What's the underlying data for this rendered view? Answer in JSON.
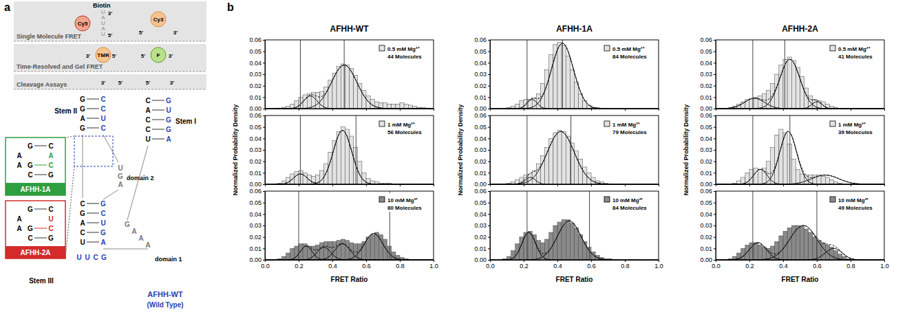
{
  "diagram": {
    "label": "a",
    "sections": [
      {
        "title": "Single Molecule FRET",
        "tag": "Biotin",
        "dyes": [
          "Cy5",
          "Cy3"
        ],
        "strand": [
          "U",
          "A",
          "U",
          "A",
          "U"
        ],
        "ends": [
          "3'",
          "5'",
          "5'",
          "3'"
        ]
      },
      {
        "title": "Time-Resolved and Gel FRET",
        "dyes": [
          "TMR",
          "F"
        ],
        "ends": [
          "3'",
          "5'",
          "5'",
          "3'"
        ]
      },
      {
        "title": "Cleavage Assays",
        "ends": [
          "3'",
          "5'",
          "5'",
          "3'"
        ]
      }
    ],
    "stems": [
      {
        "label": "Stem II",
        "pairs": [
          [
            "G",
            "C"
          ],
          [
            "G",
            "C"
          ],
          [
            "A",
            "U"
          ],
          [
            "G",
            "C"
          ]
        ]
      },
      {
        "label": "Stem I",
        "pairs": [
          [
            "C",
            "G"
          ],
          [
            "A",
            "U"
          ],
          [
            "C",
            "G"
          ],
          [
            "C",
            "G"
          ],
          [
            "U",
            "A"
          ]
        ]
      },
      {
        "label": "Stem III",
        "pairs": [
          [
            "C",
            "G"
          ],
          [
            "G",
            "C"
          ],
          [
            "A",
            "U"
          ],
          [
            "C",
            "G"
          ],
          [
            "U",
            "A"
          ]
        ],
        "loop": [
          "U",
          "U",
          "C",
          "G"
        ]
      }
    ],
    "domains": [
      {
        "label": "domain 1",
        "bases": [
          "G",
          "A",
          "A",
          "A"
        ]
      },
      {
        "label": "domain 2",
        "bases": [
          "U",
          "G",
          "A"
        ]
      }
    ],
    "insets": [
      {
        "label": "AFHH-1A",
        "color": "#2e9e3e",
        "rows": [
          [
            null,
            "G",
            "C"
          ],
          [
            "A",
            null,
            "A"
          ],
          [
            "A",
            "G",
            "C"
          ],
          [
            null,
            "C",
            "G"
          ]
        ]
      },
      {
        "label": "AFHH-2A",
        "color": "#d42a2a",
        "rows": [
          [
            null,
            "G",
            "C"
          ],
          [
            "A",
            null,
            "U"
          ],
          [
            "A",
            "G",
            "C"
          ],
          [
            null,
            "C",
            "G"
          ]
        ]
      }
    ],
    "wild_type": {
      "label": "AFHH-WT",
      "note": "(Wild Type)",
      "color": "#2b3fb0"
    }
  },
  "panel_b": {
    "label": "b"
  },
  "chart_data": [
    {
      "type": "histogram",
      "title": "AFHH-WT",
      "xlabel": "FRET Ratio",
      "ylabel": "Normalized Probability Density",
      "xlim": [
        0,
        1
      ],
      "ylim": [
        0,
        0.06
      ],
      "xticks": [
        {
          "value": 0,
          "label": "0.0"
        },
        0.2,
        0.4,
        0.6,
        0.8,
        {
          "value": 1,
          "label": "1.0"
        }
      ],
      "yticks": [
        {
          "value": 0,
          "label": "0.00"
        },
        0.01,
        0.02,
        0.03,
        0.04,
        0.05,
        0.06
      ],
      "legend": "upper right",
      "bins": [
        0,
        0.025,
        0.05,
        0.075,
        0.1,
        0.125,
        0.15,
        0.175,
        0.2,
        0.225,
        0.25,
        0.275,
        0.3,
        0.325,
        0.35,
        0.375,
        0.4,
        0.425,
        0.45,
        0.475,
        0.5,
        0.525,
        0.55,
        0.575,
        0.6,
        0.625,
        0.65,
        0.675,
        0.7,
        0.725,
        0.75,
        0.775,
        0.8,
        0.825,
        0.85,
        0.875,
        0.9,
        0.925,
        0.95,
        0.975,
        1
      ],
      "panels": [
        {
          "legend_text": "0.5 mM Mg²⁺",
          "count_text": "44 Molecules",
          "color": "#e3e3e3",
          "tick_labels": "y",
          "counts": [
            0,
            0,
            0,
            0.0005,
            0.001,
            0.002,
            0.004,
            0.007,
            0.01,
            0.012,
            0.013,
            0.014,
            0.014,
            0.015,
            0.019,
            0.025,
            0.031,
            0.037,
            0.039,
            0.038,
            0.035,
            0.029,
            0.022,
            0.016,
            0.011,
            0.008,
            0.006,
            0.005,
            0.005,
            0.004,
            0.004,
            0.004,
            0.005,
            0.004,
            0.003,
            0.002,
            0.001,
            0.001,
            0.0005,
            0
          ],
          "fits": [
            {
              "center": 0.27,
              "amplitude": 0.011,
              "sigma": 0.04
            },
            {
              "center": 0.47,
              "amplitude": 0.038,
              "sigma": 0.075
            }
          ],
          "vlines": [
            0.21,
            0.47
          ]
        },
        {
          "legend_text": "1 mM Mg²⁺",
          "count_text": "56 Molecules",
          "color": "#e3e3e3",
          "tick_labels": "y",
          "counts": [
            0,
            0,
            0,
            0.001,
            0.003,
            0.006,
            0.009,
            0.011,
            0.012,
            0.01,
            0.008,
            0.007,
            0.008,
            0.012,
            0.018,
            0.028,
            0.038,
            0.046,
            0.05,
            0.048,
            0.042,
            0.032,
            0.02,
            0.01,
            0.005,
            0.003,
            0.002,
            0.001,
            0.001,
            0.001,
            0,
            0,
            0,
            0,
            0,
            0,
            0,
            0,
            0,
            0
          ],
          "fits": [
            {
              "center": 0.21,
              "amplitude": 0.009,
              "sigma": 0.04
            },
            {
              "center": 0.46,
              "amplitude": 0.047,
              "sigma": 0.055
            }
          ],
          "vlines": [
            0.21,
            0.54
          ]
        },
        {
          "legend_text": "10 mM Mg²⁺",
          "count_text": "80 Molecules",
          "color": "#8a8a8a",
          "tick_labels": true,
          "counts": [
            0,
            0,
            0,
            0.001,
            0.003,
            0.006,
            0.01,
            0.012,
            0.014,
            0.014,
            0.012,
            0.012,
            0.013,
            0.015,
            0.016,
            0.016,
            0.016,
            0.017,
            0.018,
            0.017,
            0.015,
            0.014,
            0.014,
            0.016,
            0.02,
            0.022,
            0.024,
            0.022,
            0.018,
            0.012,
            0.007,
            0.004,
            0.002,
            0.001,
            0,
            0,
            0,
            0,
            0,
            0
          ],
          "fits": [
            {
              "center": 0.245,
              "amplitude": 0.012,
              "sigma": 0.035
            },
            {
              "center": 0.35,
              "amplitude": 0.011,
              "sigma": 0.04
            },
            {
              "center": 0.46,
              "amplitude": 0.014,
              "sigma": 0.045
            },
            {
              "center": 0.645,
              "amplitude": 0.023,
              "sigma": 0.055
            }
          ],
          "vlines": [
            0.2,
            0.74
          ]
        }
      ]
    },
    {
      "type": "histogram",
      "title": "AFHH-1A",
      "xlabel": "FRET Ratio",
      "ylabel": "Normalized Probability Density",
      "xlim": [
        0,
        1
      ],
      "ylim": [
        0,
        0.06
      ],
      "xticks": [
        {
          "value": 0,
          "label": "0.0"
        },
        0.2,
        0.4,
        0.6,
        0.8,
        {
          "value": 1,
          "label": "1.0"
        }
      ],
      "yticks": [
        {
          "value": 0,
          "label": "0.00"
        },
        0.01,
        0.02,
        0.03,
        0.04,
        0.05,
        0.06
      ],
      "legend": "upper right",
      "bins": [
        0,
        0.025,
        0.05,
        0.075,
        0.1,
        0.125,
        0.15,
        0.175,
        0.2,
        0.225,
        0.25,
        0.275,
        0.3,
        0.325,
        0.35,
        0.375,
        0.4,
        0.425,
        0.45,
        0.475,
        0.5,
        0.525,
        0.55,
        0.575,
        0.6,
        0.625,
        0.65,
        0.675,
        0.7,
        0.725,
        0.75,
        0.775,
        0.8,
        0.825,
        0.85,
        0.875,
        0.9,
        0.925,
        0.95,
        0.975,
        1
      ],
      "panels": [
        {
          "legend_text": "0.5 mM Mg²⁺",
          "count_text": "84 Molecules",
          "color": "#e3e3e3",
          "tick_labels": "y",
          "counts": [
            0,
            0,
            0,
            0,
            0.001,
            0.002,
            0.004,
            0.007,
            0.008,
            0.008,
            0.009,
            0.013,
            0.022,
            0.034,
            0.047,
            0.056,
            0.058,
            0.055,
            0.046,
            0.034,
            0.023,
            0.013,
            0.007,
            0.003,
            0.001,
            0.001,
            0,
            0,
            0,
            0,
            0,
            0,
            0,
            0,
            0,
            0,
            0,
            0,
            0,
            0
          ],
          "fits": [
            {
              "center": 0.25,
              "amplitude": 0.008,
              "sigma": 0.03
            },
            {
              "center": 0.43,
              "amplitude": 0.057,
              "sigma": 0.065
            }
          ],
          "vlines": [
            0.22,
            0.43
          ]
        },
        {
          "legend_text": "1 mM Mg²⁺",
          "count_text": "79 Molecules",
          "color": "#e3e3e3",
          "tick_labels": "y",
          "counts": [
            0,
            0,
            0,
            0,
            0.001,
            0.002,
            0.004,
            0.006,
            0.008,
            0.009,
            0.012,
            0.018,
            0.025,
            0.032,
            0.04,
            0.045,
            0.047,
            0.046,
            0.042,
            0.036,
            0.029,
            0.022,
            0.015,
            0.01,
            0.006,
            0.003,
            0.002,
            0.001,
            0,
            0,
            0,
            0,
            0,
            0,
            0,
            0,
            0,
            0,
            0,
            0
          ],
          "fits": [
            {
              "center": 0.24,
              "amplitude": 0.006,
              "sigma": 0.03
            },
            {
              "center": 0.42,
              "amplitude": 0.046,
              "sigma": 0.08
            }
          ],
          "vlines": [
            0.22,
            0.48
          ]
        },
        {
          "legend_text": "10 mM Mg²⁺",
          "count_text": "84 Molecules",
          "color": "#8a8a8a",
          "tick_labels": true,
          "counts": [
            0,
            0,
            0,
            0.001,
            0.003,
            0.008,
            0.014,
            0.02,
            0.024,
            0.025,
            0.022,
            0.017,
            0.015,
            0.018,
            0.024,
            0.03,
            0.033,
            0.035,
            0.035,
            0.032,
            0.028,
            0.022,
            0.016,
            0.011,
            0.007,
            0.004,
            0.002,
            0.001,
            0.001,
            0,
            0,
            0,
            0,
            0,
            0,
            0,
            0,
            0,
            0,
            0
          ],
          "fits": [
            {
              "center": 0.23,
              "amplitude": 0.024,
              "sigma": 0.04
            },
            {
              "center": 0.47,
              "amplitude": 0.034,
              "sigma": 0.07
            }
          ],
          "vlines": [
            0.22,
            0.59
          ]
        }
      ]
    },
    {
      "type": "histogram",
      "title": "AFHH-2A",
      "xlabel": "FRET Ratio",
      "ylabel": "Normalized Probability Density",
      "xlim": [
        0,
        1
      ],
      "ylim": [
        0,
        0.06
      ],
      "xticks": [
        {
          "value": 0,
          "label": "0.0"
        },
        0.2,
        0.4,
        0.6,
        0.8,
        {
          "value": 1,
          "label": "1.0"
        }
      ],
      "yticks": [
        {
          "value": 0,
          "label": "0.00"
        },
        0.01,
        0.02,
        0.03,
        0.04,
        0.05,
        0.06
      ],
      "legend": "upper right",
      "bins": [
        0,
        0.025,
        0.05,
        0.075,
        0.1,
        0.125,
        0.15,
        0.175,
        0.2,
        0.225,
        0.25,
        0.275,
        0.3,
        0.325,
        0.35,
        0.375,
        0.4,
        0.425,
        0.45,
        0.475,
        0.5,
        0.525,
        0.55,
        0.575,
        0.6,
        0.625,
        0.65,
        0.675,
        0.7,
        0.725,
        0.75,
        0.775,
        0.8,
        0.825,
        0.85,
        0.875,
        0.9,
        0.925,
        0.95,
        0.975,
        1
      ],
      "panels": [
        {
          "legend_text": "0.5 mM Mg²⁺",
          "count_text": "41 Molecules",
          "color": "#e3e3e3",
          "tick_labels": "y",
          "counts": [
            0,
            0,
            0,
            0.001,
            0.002,
            0.004,
            0.006,
            0.008,
            0.009,
            0.01,
            0.011,
            0.013,
            0.016,
            0.022,
            0.03,
            0.038,
            0.043,
            0.045,
            0.042,
            0.036,
            0.028,
            0.018,
            0.011,
            0.008,
            0.007,
            0.006,
            0.004,
            0.002,
            0.001,
            0,
            0,
            0,
            0,
            0,
            0,
            0,
            0,
            0,
            0,
            0
          ],
          "fits": [
            {
              "center": 0.23,
              "amplitude": 0.009,
              "sigma": 0.06
            },
            {
              "center": 0.44,
              "amplitude": 0.043,
              "sigma": 0.06
            },
            {
              "center": 0.6,
              "amplitude": 0.006,
              "sigma": 0.03
            }
          ],
          "vlines": [
            0.22,
            0.41
          ]
        },
        {
          "legend_text": "1 mM Mg²⁺",
          "count_text": "39 Molecules",
          "color": "#e3e3e3",
          "tick_labels": "y",
          "counts": [
            0,
            0,
            0,
            0,
            0.001,
            0.003,
            0.006,
            0.01,
            0.013,
            0.014,
            0.013,
            0.014,
            0.02,
            0.032,
            0.043,
            0.048,
            0.045,
            0.035,
            0.022,
            0.013,
            0.009,
            0.008,
            0.008,
            0.008,
            0.008,
            0.007,
            0.006,
            0.004,
            0.002,
            0.001,
            0,
            0,
            0,
            0,
            0,
            0,
            0,
            0,
            0,
            0
          ],
          "fits": [
            {
              "center": 0.265,
              "amplitude": 0.013,
              "sigma": 0.04
            },
            {
              "center": 0.43,
              "amplitude": 0.046,
              "sigma": 0.05
            },
            {
              "center": 0.65,
              "amplitude": 0.008,
              "sigma": 0.08
            }
          ],
          "vlines": [
            0.22,
            0.44
          ]
        },
        {
          "legend_text": "10 mM Mg²⁺",
          "count_text": "49 Molecules",
          "color": "#8a8a8a",
          "tick_labels": true,
          "counts": [
            0,
            0,
            0,
            0.001,
            0.003,
            0.006,
            0.01,
            0.013,
            0.015,
            0.015,
            0.013,
            0.011,
            0.01,
            0.012,
            0.016,
            0.021,
            0.025,
            0.028,
            0.03,
            0.03,
            0.029,
            0.027,
            0.024,
            0.02,
            0.017,
            0.015,
            0.013,
            0.011,
            0.008,
            0.005,
            0.003,
            0.001,
            0,
            0,
            0,
            0,
            0,
            0,
            0,
            0
          ],
          "fits": [
            {
              "center": 0.25,
              "amplitude": 0.015,
              "sigma": 0.05
            },
            {
              "center": 0.52,
              "amplitude": 0.03,
              "sigma": 0.08
            },
            {
              "center": 0.7,
              "amplitude": 0.01,
              "sigma": 0.05
            }
          ],
          "vlines": [
            0.22,
            0.6
          ]
        }
      ]
    }
  ]
}
